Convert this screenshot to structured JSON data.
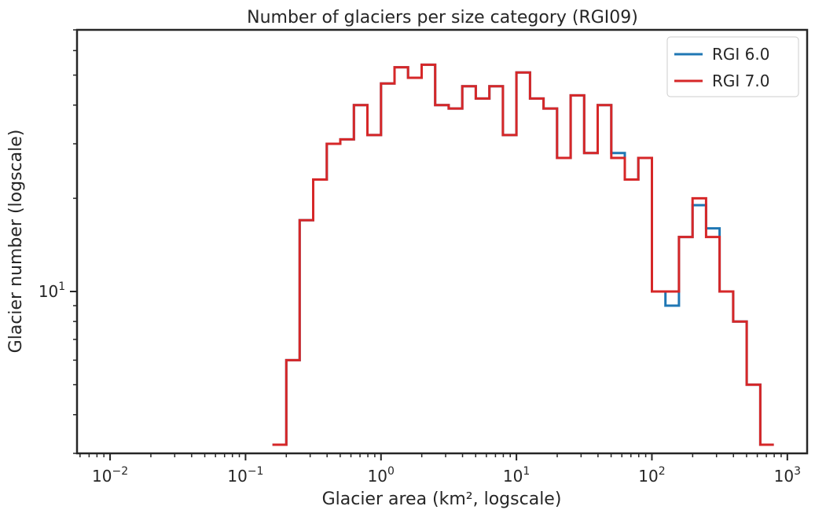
{
  "chart_data": {
    "type": "line",
    "title": "Number of glaciers per size category (RGI09)",
    "xlabel": "Glacier area (km², logscale)",
    "ylabel": "Glacier number (logscale)",
    "xscale": "log",
    "yscale": "log",
    "xlim": [
      0.0057,
      1400
    ],
    "ylim": [
      3.0,
      70
    ],
    "grid": false,
    "legend_position": "top-right",
    "x_ticks": [
      {
        "base": "10",
        "exp": "−2",
        "value": 0.01
      },
      {
        "base": "10",
        "exp": "−1",
        "value": 0.1
      },
      {
        "base": "10",
        "exp": "0",
        "value": 1
      },
      {
        "base": "10",
        "exp": "1",
        "value": 10
      },
      {
        "base": "10",
        "exp": "2",
        "value": 100
      },
      {
        "base": "10",
        "exp": "3",
        "value": 1000
      }
    ],
    "y_ticks": [
      {
        "base": "10",
        "exp": "1",
        "value": 10
      }
    ],
    "bin_edges": [
      0.158,
      0.2,
      0.251,
      0.316,
      0.398,
      0.501,
      0.631,
      0.794,
      1.0,
      1.259,
      1.585,
      1.995,
      2.512,
      3.162,
      3.981,
      5.012,
      6.31,
      7.943,
      10.0,
      12.59,
      15.85,
      19.95,
      25.12,
      31.62,
      39.81,
      50.12,
      63.1,
      79.43,
      100.0,
      125.9,
      158.5,
      199.5,
      251.2,
      316.2,
      398.1,
      501.2,
      631.0,
      794.3
    ],
    "series": [
      {
        "name": "RGI 6.0",
        "color": "#1f77b4",
        "counts": [
          3.2,
          6.0,
          17.0,
          23.0,
          30.0,
          31.0,
          40.0,
          32.0,
          47.0,
          53.0,
          49.0,
          54.0,
          40.0,
          39.0,
          46.0,
          42.0,
          46.0,
          32.0,
          51.0,
          42.0,
          39.0,
          27.0,
          43.0,
          28.0,
          40.0,
          28.0,
          23.0,
          27.0,
          10.0,
          9.0,
          15.0,
          19.0,
          16.0,
          10.0,
          8.0,
          5.0,
          3.2
        ]
      },
      {
        "name": "RGI 7.0",
        "color": "#d62728",
        "counts": [
          3.2,
          6.0,
          17.0,
          23.0,
          30.0,
          31.0,
          40.0,
          32.0,
          47.0,
          53.0,
          49.0,
          54.0,
          40.0,
          39.0,
          46.0,
          42.0,
          46.0,
          32.0,
          51.0,
          42.0,
          39.0,
          27.0,
          43.0,
          28.0,
          40.0,
          27.0,
          23.0,
          27.0,
          10.0,
          10.0,
          15.0,
          20.0,
          15.0,
          10.0,
          8.0,
          5.0,
          3.2
        ]
      }
    ]
  }
}
